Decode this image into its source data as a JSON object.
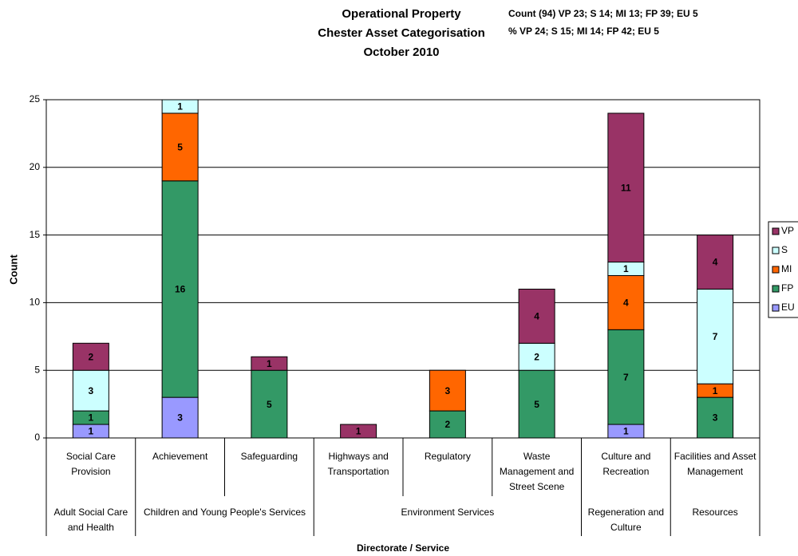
{
  "chart_data": {
    "type": "stacked_bar",
    "title": [
      "Operational Property",
      "Chester Asset Categorisation",
      "October 2010"
    ],
    "annotations": [
      "Count (94) VP 23; S 14;  MI 13; FP 39; EU 5",
      "% VP 24; S 15; MI 14; FP 42; EU 5"
    ],
    "y_label": "Count",
    "x_label": "Directorate / Service",
    "categories": [
      "Social Care Provision",
      "Achievement",
      "Safeguarding",
      "Highways and Transportation",
      "Regulatory",
      "Waste Management and Street Scene",
      "Culture and Recreation",
      "Facilities and Asset Management"
    ],
    "category_groups": [
      "Adult Social Care and Health",
      "Children and Young People's Services",
      "Children and Young People's Services",
      "Environment Services",
      "Environment Services",
      "Environment Services",
      "Regeneration and Culture",
      "Resources"
    ],
    "series": [
      {
        "name": "EU",
        "color": "#9999ff",
        "values": [
          1,
          3,
          0,
          0,
          0,
          0,
          1,
          0
        ]
      },
      {
        "name": "FP",
        "color": "#339966",
        "values": [
          1,
          16,
          5,
          0,
          2,
          5,
          7,
          3
        ]
      },
      {
        "name": "MI",
        "color": "#ff6600",
        "values": [
          0,
          5,
          0,
          0,
          3,
          0,
          4,
          1
        ]
      },
      {
        "name": "S",
        "color": "#ccffff",
        "values": [
          3,
          1,
          0,
          0,
          0,
          2,
          1,
          7
        ]
      },
      {
        "name": "VP",
        "color": "#993366",
        "values": [
          2,
          0,
          1,
          1,
          0,
          4,
          11,
          4
        ]
      }
    ],
    "ylim": [
      0,
      25
    ],
    "yticks": [
      0,
      5,
      10,
      15,
      20,
      25
    ],
    "grid": true,
    "legend": "right"
  }
}
